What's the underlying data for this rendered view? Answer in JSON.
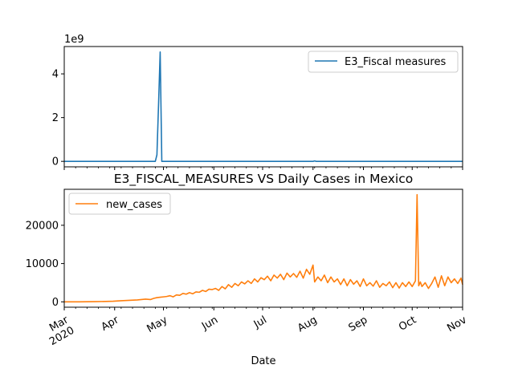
{
  "chart_data": [
    {
      "type": "line",
      "title": "",
      "xlabel": "",
      "ylabel": "",
      "y_offset_label": "1e9",
      "ylim": [
        -0.25,
        5.25
      ],
      "y_ticks": [
        0,
        2,
        4
      ],
      "y_tick_labels": [
        "0",
        "2",
        "4"
      ],
      "grid": false,
      "legend_position": "upper right",
      "series": [
        {
          "name": "E3_Fiscal measures",
          "color": "#1f77b4",
          "x": [
            "2020-03-01",
            "2020-04-26",
            "2020-04-27",
            "2020-04-28",
            "2020-04-29",
            "2020-04-30",
            "2020-08-01",
            "2020-08-02",
            "2020-08-03",
            "2020-11-01"
          ],
          "values": [
            0,
            0,
            0.3,
            2.6,
            5.0,
            0,
            0,
            0.02,
            0,
            0
          ]
        }
      ]
    },
    {
      "type": "line",
      "title": "E3_FISCAL_MEASURES VS Daily Cases in Mexico",
      "xlabel": "Date",
      "ylabel": "",
      "ylim": [
        -1400,
        29400
      ],
      "y_ticks": [
        0,
        10000,
        20000
      ],
      "y_tick_labels": [
        "0",
        "10000",
        "20000"
      ],
      "x_ticks": [
        "2020-03-01",
        "2020-04-01",
        "2020-05-01",
        "2020-06-01",
        "2020-07-01",
        "2020-08-01",
        "2020-09-01",
        "2020-10-01",
        "2020-11-01"
      ],
      "x_tick_labels": [
        "Mar\n2020",
        "Apr",
        "May",
        "Jun",
        "Jul",
        "Aug",
        "Sep",
        "Oct",
        "Nov"
      ],
      "grid": false,
      "legend_position": "upper left",
      "series": [
        {
          "name": "new_cases",
          "color": "#ff7f0e",
          "x": [
            "2020-03-01",
            "2020-03-10",
            "2020-03-20",
            "2020-03-31",
            "2020-04-05",
            "2020-04-10",
            "2020-04-15",
            "2020-04-20",
            "2020-04-23",
            "2020-04-25",
            "2020-04-27",
            "2020-04-29",
            "2020-05-01",
            "2020-05-03",
            "2020-05-05",
            "2020-05-07",
            "2020-05-09",
            "2020-05-11",
            "2020-05-13",
            "2020-05-15",
            "2020-05-17",
            "2020-05-19",
            "2020-05-21",
            "2020-05-23",
            "2020-05-25",
            "2020-05-27",
            "2020-05-29",
            "2020-05-31",
            "2020-06-02",
            "2020-06-04",
            "2020-06-06",
            "2020-06-08",
            "2020-06-10",
            "2020-06-12",
            "2020-06-14",
            "2020-06-16",
            "2020-06-18",
            "2020-06-20",
            "2020-06-22",
            "2020-06-24",
            "2020-06-26",
            "2020-06-28",
            "2020-06-30",
            "2020-07-02",
            "2020-07-04",
            "2020-07-06",
            "2020-07-08",
            "2020-07-10",
            "2020-07-12",
            "2020-07-14",
            "2020-07-16",
            "2020-07-18",
            "2020-07-20",
            "2020-07-22",
            "2020-07-24",
            "2020-07-26",
            "2020-07-28",
            "2020-07-30",
            "2020-08-01",
            "2020-08-02",
            "2020-08-04",
            "2020-08-06",
            "2020-08-08",
            "2020-08-10",
            "2020-08-12",
            "2020-08-14",
            "2020-08-16",
            "2020-08-18",
            "2020-08-20",
            "2020-08-22",
            "2020-08-24",
            "2020-08-26",
            "2020-08-28",
            "2020-08-30",
            "2020-09-01",
            "2020-09-03",
            "2020-09-05",
            "2020-09-07",
            "2020-09-09",
            "2020-09-11",
            "2020-09-13",
            "2020-09-15",
            "2020-09-17",
            "2020-09-19",
            "2020-09-21",
            "2020-09-23",
            "2020-09-25",
            "2020-09-27",
            "2020-09-29",
            "2020-10-01",
            "2020-10-03",
            "2020-10-04",
            "2020-10-05",
            "2020-10-06",
            "2020-10-07",
            "2020-10-09",
            "2020-10-11",
            "2020-10-13",
            "2020-10-15",
            "2020-10-17",
            "2020-10-19",
            "2020-10-21",
            "2020-10-23",
            "2020-10-25",
            "2020-10-27",
            "2020-10-29",
            "2020-10-31",
            "2020-11-01"
          ],
          "values": [
            0,
            10,
            50,
            150,
            300,
            400,
            500,
            700,
            600,
            900,
            1100,
            1200,
            1300,
            1400,
            1600,
            1300,
            1800,
            1700,
            2200,
            2000,
            2400,
            2100,
            2600,
            2500,
            3000,
            2700,
            3300,
            3200,
            3500,
            3000,
            4000,
            3400,
            4500,
            3800,
            4800,
            4200,
            5200,
            4700,
            5500,
            4800,
            6000,
            5200,
            6300,
            5800,
            6700,
            5500,
            7000,
            6200,
            7200,
            5800,
            7500,
            6500,
            7400,
            6400,
            8000,
            6200,
            8500,
            7200,
            9600,
            5200,
            6500,
            5500,
            7000,
            5000,
            6500,
            5200,
            6000,
            4500,
            6000,
            4200,
            5800,
            4600,
            5500,
            4000,
            6000,
            4200,
            5000,
            4100,
            5500,
            3800,
            4800,
            4200,
            5200,
            3700,
            5000,
            3600,
            5000,
            4000,
            5200,
            4000,
            5500,
            28000,
            4200,
            5200,
            4000,
            5000,
            3500,
            4800,
            6500,
            3800,
            6800,
            4200,
            6500,
            5000,
            6000,
            4800,
            6200,
            4500
          ]
        }
      ]
    }
  ]
}
